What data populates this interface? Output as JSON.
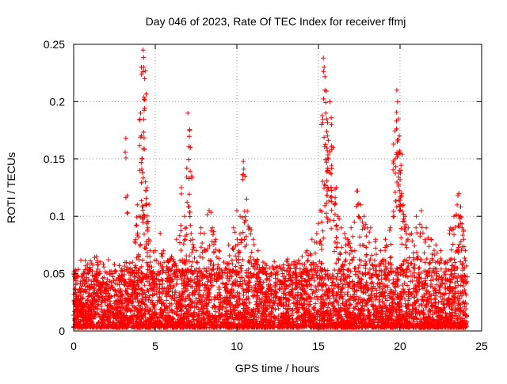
{
  "chart_data": {
    "type": "scatter",
    "title": "Day 046 of 2023, Rate Of TEC Index for receiver ffmj",
    "xlabel": "GPS time / hours",
    "ylabel": "ROTI / TECUs",
    "xlim": [
      0,
      25
    ],
    "ylim": [
      0,
      0.25
    ],
    "xticks": [
      0,
      5,
      10,
      15,
      20,
      25
    ],
    "xtick_labels": [
      "0",
      "5",
      "10",
      "15",
      "20",
      "25"
    ],
    "yticks": [
      0,
      0.05,
      0.1,
      0.15,
      0.2,
      0.25
    ],
    "ytick_labels": [
      "0",
      "0.05",
      "0.1",
      "0.15",
      "0.2",
      "0.25"
    ],
    "grid": true,
    "marker": "+",
    "color": "#ff0000",
    "series": [
      {
        "name": "ROTI",
        "x": [
          0.1,
          0.2,
          0.3,
          0.5,
          0.7,
          0.9,
          1.1,
          1.3,
          1.4,
          1.5,
          1.7,
          2.0,
          2.3,
          2.6,
          2.9,
          3.2,
          3.4,
          3.6,
          3.8,
          3.9,
          4.0,
          4.1,
          4.15,
          4.2,
          4.25,
          4.3,
          4.35,
          4.4,
          4.45,
          4.5,
          4.55,
          4.6,
          4.7,
          4.8,
          5.0,
          5.3,
          5.5,
          5.8,
          6.0,
          6.3,
          6.6,
          6.8,
          6.9,
          7.0,
          7.1,
          7.15,
          7.2,
          7.3,
          7.5,
          7.8,
          8.0,
          8.3,
          8.5,
          8.7,
          8.9,
          9.2,
          9.5,
          9.8,
          10.0,
          10.2,
          10.3,
          10.4,
          10.5,
          10.6,
          10.8,
          11.0,
          11.3,
          11.6,
          12.0,
          12.4,
          12.8,
          13.2,
          13.6,
          14.0,
          14.3,
          14.6,
          14.9,
          15.1,
          15.2,
          15.3,
          15.35,
          15.4,
          15.45,
          15.5,
          15.55,
          15.6,
          15.7,
          15.8,
          15.9,
          16.0,
          16.1,
          16.2,
          16.4,
          16.6,
          16.8,
          17.0,
          17.2,
          17.4,
          17.6,
          17.8,
          18.0,
          18.2,
          18.5,
          18.8,
          19.1,
          19.4,
          19.6,
          19.7,
          19.8,
          19.85,
          19.9,
          19.95,
          20.0,
          20.05,
          20.1,
          20.2,
          20.3,
          20.5,
          20.7,
          21.0,
          21.3,
          21.6,
          21.9,
          22.2,
          22.5,
          22.8,
          23.1,
          23.3,
          23.5,
          23.6,
          23.7,
          23.8,
          23.9,
          24.0
        ],
        "y": [
          0.033,
          0.03,
          0.028,
          0.025,
          0.024,
          0.022,
          0.03,
          0.046,
          0.065,
          0.058,
          0.04,
          0.035,
          0.03,
          0.032,
          0.035,
          0.168,
          0.045,
          0.06,
          0.08,
          0.11,
          0.1,
          0.19,
          0.17,
          0.15,
          0.245,
          0.23,
          0.22,
          0.13,
          0.11,
          0.125,
          0.09,
          0.08,
          0.06,
          0.05,
          0.07,
          0.085,
          0.07,
          0.06,
          0.065,
          0.08,
          0.125,
          0.1,
          0.09,
          0.19,
          0.175,
          0.16,
          0.085,
          0.08,
          0.07,
          0.09,
          0.085,
          0.105,
          0.09,
          0.08,
          0.07,
          0.06,
          0.075,
          0.09,
          0.105,
          0.1,
          0.08,
          0.148,
          0.135,
          0.115,
          0.09,
          0.08,
          0.07,
          0.06,
          0.055,
          0.05,
          0.05,
          0.055,
          0.06,
          0.065,
          0.07,
          0.08,
          0.085,
          0.105,
          0.095,
          0.238,
          0.23,
          0.21,
          0.19,
          0.185,
          0.17,
          0.15,
          0.2,
          0.18,
          0.16,
          0.11,
          0.125,
          0.1,
          0.09,
          0.085,
          0.08,
          0.09,
          0.095,
          0.122,
          0.11,
          0.1,
          0.09,
          0.09,
          0.08,
          0.07,
          0.08,
          0.09,
          0.163,
          0.15,
          0.21,
          0.2,
          0.185,
          0.17,
          0.155,
          0.14,
          0.12,
          0.11,
          0.1,
          0.09,
          0.085,
          0.1,
          0.105,
          0.09,
          0.08,
          0.075,
          0.07,
          0.06,
          0.09,
          0.1,
          0.11,
          0.12,
          0.1,
          0.09,
          0.08,
          0.07
        ],
        "baseline_range": [
          0.003,
          0.04
        ],
        "note": "dense noise cloud of thousands of points between 0 and ~0.05 across 0–24 h with spikes listed in x/y"
      }
    ]
  }
}
